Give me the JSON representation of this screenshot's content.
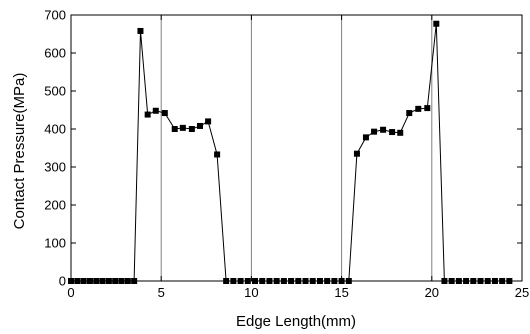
{
  "chart_data": {
    "type": "line",
    "title": "",
    "xlabel": "Edge Length(mm)",
    "ylabel": "Contact Pressure(MPa)",
    "xlim": [
      0,
      25
    ],
    "ylim": [
      0,
      700
    ],
    "xticks": [
      0,
      5,
      10,
      15,
      20,
      25
    ],
    "yticks": [
      0,
      100,
      200,
      300,
      400,
      500,
      600,
      700
    ],
    "grid": "vertical",
    "legend": "none",
    "colors": {
      "line": "#000000",
      "marker": "#000000",
      "grid": "#808080",
      "axes": "#000000"
    },
    "series": [
      {
        "marker": "square",
        "x": [
          0.0,
          0.35,
          0.7,
          1.05,
          1.4,
          1.75,
          2.1,
          2.45,
          2.8,
          3.15,
          3.5,
          3.85,
          4.25,
          4.7,
          5.2,
          5.75,
          6.2,
          6.7,
          7.15,
          7.6,
          8.1,
          8.6,
          9.0,
          9.4,
          9.8,
          10.2,
          10.6,
          11.0,
          11.4,
          11.8,
          12.2,
          12.6,
          13.0,
          13.4,
          13.8,
          14.2,
          14.6,
          15.0,
          15.4,
          15.85,
          16.35,
          16.8,
          17.3,
          17.8,
          18.25,
          18.75,
          19.25,
          19.75,
          20.25,
          20.7,
          21.1,
          21.5,
          21.9,
          22.3,
          22.7,
          23.1,
          23.5,
          23.9,
          24.3
        ],
        "y": [
          0,
          0,
          0,
          0,
          0,
          0,
          0,
          0,
          0,
          0,
          0,
          658,
          438,
          448,
          442,
          400,
          403,
          400,
          408,
          420,
          333,
          0,
          0,
          0,
          0,
          0,
          0,
          0,
          0,
          0,
          0,
          0,
          0,
          0,
          0,
          0,
          0,
          0,
          0,
          335,
          378,
          393,
          398,
          392,
          390,
          442,
          453,
          455,
          677,
          0,
          0,
          0,
          0,
          0,
          0,
          0,
          0,
          0,
          0
        ]
      }
    ]
  }
}
